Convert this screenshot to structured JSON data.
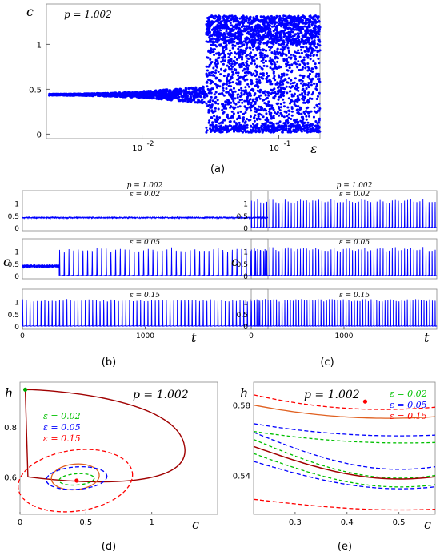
{
  "chart_data": [
    {
      "panel": "a",
      "type": "scatter",
      "caption": "(a)",
      "annotation": "p = 1.002",
      "xlabel": "ε",
      "ylabel": "c",
      "xscale": "log",
      "xlim": [
        0.002,
        0.2
      ],
      "ylim": [
        -0.05,
        1.45
      ],
      "xticks": [
        {
          "v": 0.01,
          "label": "10^-2"
        },
        {
          "v": 0.1,
          "label": "10^-1"
        }
      ],
      "yticks": [
        {
          "v": 0,
          "label": "0"
        },
        {
          "v": 0.5,
          "label": "0.5"
        },
        {
          "v": 1,
          "label": "1"
        }
      ],
      "color": "#0000ff",
      "series": [
        {
          "x": [
            0.0022,
            0.004,
            0.008,
            0.013,
            0.018,
            0.023,
            0.027
          ],
          "y": [
            0.44,
            0.44,
            0.44,
            0.44,
            0.44,
            0.44,
            0.44
          ],
          "spread": [
            0.01,
            0.015,
            0.03,
            0.05,
            0.07,
            0.08,
            0.1
          ]
        },
        {
          "x": [
            0.03,
            0.2
          ],
          "ymin": 0.02,
          "ymax": 1.32
        }
      ]
    },
    {
      "panel": "b",
      "type": "line",
      "caption": "(b)",
      "xlabel": "t",
      "ylabel": "c",
      "xlim": [
        0,
        2000
      ],
      "xticks": [
        0,
        1000
      ],
      "yticks": [
        0,
        0.5,
        1
      ],
      "ylim": [
        0,
        1.45
      ],
      "color": "#0000ff",
      "subplots": [
        {
          "title": "p = 1.002",
          "label": "ε = 0.02",
          "regime": "steady",
          "level": 0.44
        },
        {
          "label": "ε = 0.05",
          "regime": "transient-then-spiking",
          "switch_t": 300,
          "period": 38,
          "peak": 1.22
        },
        {
          "label": "ε = 0.15",
          "regime": "spiking",
          "period": 30,
          "peak": 1.28
        }
      ]
    },
    {
      "panel": "c",
      "type": "line",
      "caption": "(c)",
      "xlabel": "t",
      "ylabel": "c",
      "xlim": [
        0,
        2000
      ],
      "xticks": [
        0,
        1000
      ],
      "yticks": [
        0,
        0.5,
        1
      ],
      "ylim": [
        0,
        1.45
      ],
      "color": "#0000ff",
      "subplots": [
        {
          "title": "p = 1.002",
          "label": "ε = 0.02",
          "regime": "spiking",
          "period": 33,
          "peak": 1.25
        },
        {
          "label": "ε = 0.05",
          "regime": "spiking",
          "period": 33,
          "peak": 1.25
        },
        {
          "label": "ε = 0.15",
          "regime": "spiking",
          "period": 30,
          "peak": 1.28
        }
      ]
    },
    {
      "panel": "d",
      "type": "line",
      "caption": "(d)",
      "annotation": "p = 1.002",
      "xlabel": "c",
      "ylabel": "h",
      "xlim": [
        0,
        1.5
      ],
      "ylim": [
        0.45,
        0.98
      ],
      "xticks": [
        0,
        0.5,
        1
      ],
      "yticks": [
        0.6,
        0.8
      ],
      "legend": [
        {
          "label": "ε = 0.02",
          "color": "#00c000"
        },
        {
          "label": "ε = 0.05",
          "color": "#0000ff"
        },
        {
          "label": "ε = 0.15",
          "color": "#ff0000"
        }
      ],
      "markers": [
        {
          "c": 0.43,
          "h": 0.585,
          "color": "#ff0000"
        },
        {
          "c": 0.04,
          "h": 0.95,
          "color": "#00aa00"
        }
      ]
    },
    {
      "panel": "e",
      "type": "line",
      "caption": "(e)",
      "annotation": "p = 1.002",
      "xlabel": "c",
      "ylabel": "h",
      "xlim": [
        0.22,
        0.57
      ],
      "ylim": [
        0.518,
        0.593
      ],
      "xticks": [
        0.3,
        0.4,
        0.5
      ],
      "yticks": [
        0.54,
        0.58
      ],
      "legend": [
        {
          "label": "ε = 0.02",
          "color": "#00c000"
        },
        {
          "label": "ε = 0.05",
          "color": "#0000ff"
        },
        {
          "label": "ε = 0.15",
          "color": "#ff0000"
        }
      ],
      "markers": [
        {
          "c": 0.435,
          "h": 0.582,
          "color": "#ff0000"
        }
      ]
    }
  ]
}
